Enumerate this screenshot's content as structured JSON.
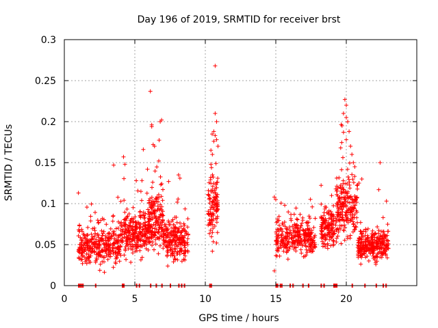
{
  "chart_data": {
    "type": "scatter",
    "title": "Day 196 of 2019, SRMTID for receiver brst",
    "xlabel": "GPS time / hours",
    "ylabel": "SRMTID / TECUs",
    "xlim": [
      0,
      25
    ],
    "ylim": [
      0,
      0.3
    ],
    "x_ticks": [
      0,
      5,
      10,
      15,
      20
    ],
    "x_tick_labels": [
      "0",
      "5",
      "10",
      "15",
      "20"
    ],
    "y_ticks": [
      0,
      0.05,
      0.1,
      0.15,
      0.2,
      0.25,
      0.3
    ],
    "y_tick_labels": [
      "0",
      "0.05",
      "0.1",
      "0.15",
      "0.2",
      "0.25",
      "0.3"
    ],
    "grid": true,
    "marker": "+",
    "color": "#ff0000",
    "series": [
      {
        "name": "SRMTID",
        "segments": [
          {
            "start": 1.0,
            "end": 4.0,
            "base": 0.048,
            "spread": 0.018,
            "n": 330
          },
          {
            "start": 4.0,
            "end": 6.0,
            "base": 0.065,
            "spread": 0.022,
            "n": 260
          },
          {
            "start": 6.0,
            "end": 7.0,
            "base": 0.08,
            "spread": 0.028,
            "n": 160
          },
          {
            "start": 7.0,
            "end": 8.8,
            "base": 0.055,
            "spread": 0.02,
            "n": 220
          },
          {
            "start": 10.2,
            "end": 10.9,
            "base": 0.1,
            "spread": 0.035,
            "n": 110
          },
          {
            "start": 15.0,
            "end": 17.8,
            "base": 0.058,
            "spread": 0.018,
            "n": 300
          },
          {
            "start": 18.2,
            "end": 19.3,
            "base": 0.07,
            "spread": 0.02,
            "n": 140
          },
          {
            "start": 19.3,
            "end": 20.8,
            "base": 0.095,
            "spread": 0.03,
            "n": 200
          },
          {
            "start": 20.8,
            "end": 23.0,
            "base": 0.05,
            "spread": 0.016,
            "n": 280
          }
        ],
        "peaks": [
          [
            1.0,
            0.113
          ],
          [
            3.5,
            0.147
          ],
          [
            4.2,
            0.157
          ],
          [
            4.3,
            0.148
          ],
          [
            5.1,
            0.128
          ],
          [
            5.6,
            0.166
          ],
          [
            5.9,
            0.142
          ],
          [
            6.1,
            0.237
          ],
          [
            6.2,
            0.196
          ],
          [
            6.2,
            0.194
          ],
          [
            6.3,
            0.172
          ],
          [
            6.4,
            0.17
          ],
          [
            6.8,
            0.2
          ],
          [
            6.9,
            0.202
          ],
          [
            6.7,
            0.152
          ],
          [
            8.1,
            0.135
          ],
          [
            8.2,
            0.131
          ],
          [
            7.4,
            0.127
          ],
          [
            10.7,
            0.268
          ],
          [
            10.7,
            0.21
          ],
          [
            10.8,
            0.2
          ],
          [
            10.6,
            0.188
          ],
          [
            10.7,
            0.183
          ],
          [
            10.5,
            0.16
          ],
          [
            10.4,
            0.165
          ],
          [
            10.8,
            0.178
          ],
          [
            10.6,
            0.176
          ],
          [
            10.9,
            0.17
          ],
          [
            10.4,
            0.148
          ],
          [
            10.5,
            0.042
          ],
          [
            10.8,
            0.052
          ],
          [
            14.9,
            0.018
          ],
          [
            14.9,
            0.108
          ],
          [
            15.0,
            0.105
          ],
          [
            19.9,
            0.227
          ],
          [
            20.0,
            0.22
          ],
          [
            20.0,
            0.205
          ],
          [
            19.8,
            0.21
          ],
          [
            19.7,
            0.195
          ],
          [
            20.1,
            0.2
          ],
          [
            20.2,
            0.188
          ],
          [
            19.8,
            0.187
          ],
          [
            20.0,
            0.178
          ],
          [
            20.3,
            0.17
          ],
          [
            19.6,
            0.168
          ],
          [
            20.4,
            0.16
          ],
          [
            20.5,
            0.15
          ],
          [
            20.6,
            0.145
          ],
          [
            22.4,
            0.15
          ],
          [
            22.3,
            0.117
          ],
          [
            21.1,
            0.13
          ],
          [
            20.9,
            0.125
          ]
        ],
        "zeros": [
          1.0,
          1.1,
          1.2,
          1.3,
          2.2,
          4.1,
          4.2,
          5.1,
          5.3,
          6.1,
          6.5,
          6.9,
          7.5,
          8.1,
          8.3,
          8.5,
          10.3,
          10.4,
          15.0,
          15.1,
          15.3,
          15.4,
          16.0,
          16.2,
          16.9,
          17.3,
          18.2,
          18.4,
          19.1,
          19.2,
          19.3,
          20.4,
          21.3,
          22.1,
          22.6,
          22.8
        ]
      }
    ]
  }
}
